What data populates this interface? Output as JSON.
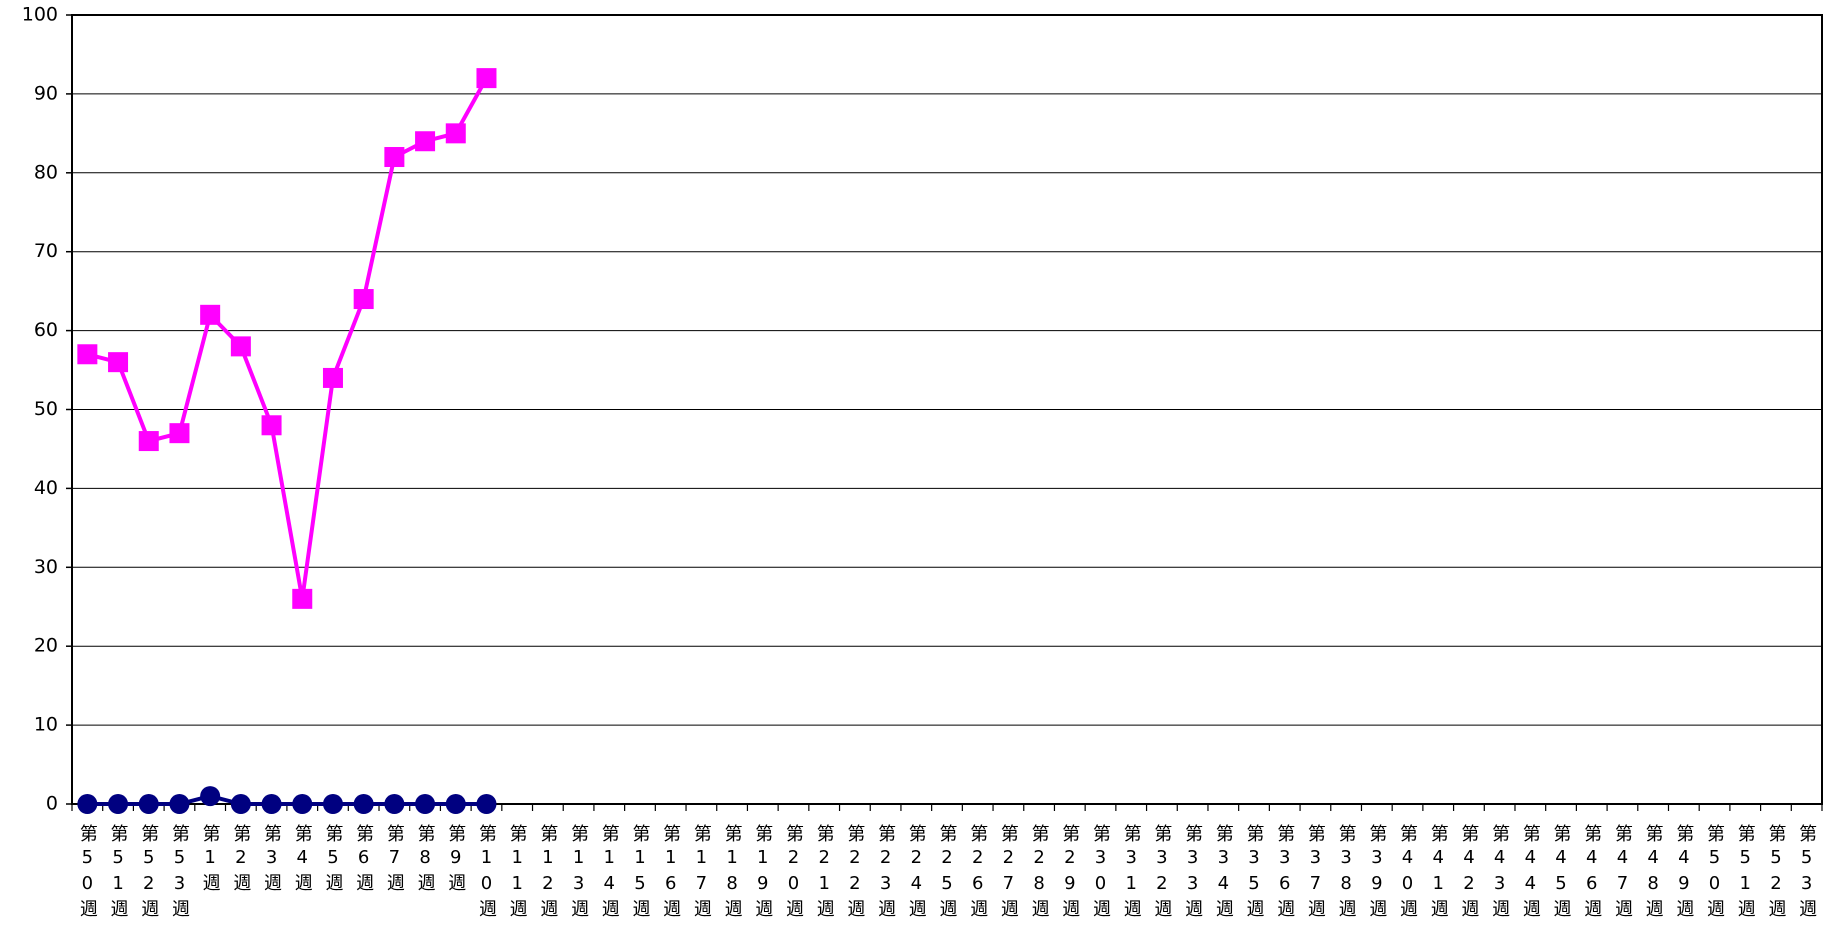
{
  "chart_data": {
    "type": "line",
    "categories": [
      "第50週",
      "第51週",
      "第52週",
      "第53週",
      "第1週",
      "第2週",
      "第3週",
      "第4週",
      "第5週",
      "第6週",
      "第7週",
      "第8週",
      "第9週",
      "第10週",
      "第11週",
      "第12週",
      "第13週",
      "第14週",
      "第15週",
      "第16週",
      "第17週",
      "第18週",
      "第19週",
      "第20週",
      "第21週",
      "第22週",
      "第23週",
      "第24週",
      "第25週",
      "第26週",
      "第27週",
      "第28週",
      "第29週",
      "第30週",
      "第31週",
      "第32週",
      "第33週",
      "第34週",
      "第35週",
      "第36週",
      "第37週",
      "第38週",
      "第39週",
      "第40週",
      "第41週",
      "第42週",
      "第43週",
      "第44週",
      "第45週",
      "第46週",
      "第47週",
      "第48週",
      "第49週",
      "第50週",
      "第51週",
      "第52週",
      "第53週"
    ],
    "series": [
      {
        "color": "#ff00ff",
        "marker": "square",
        "values": [
          57,
          56,
          46,
          47,
          62,
          58,
          48,
          26,
          54,
          64,
          82,
          84,
          85,
          92,
          null,
          null,
          null,
          null,
          null,
          null,
          null,
          null,
          null,
          null,
          null,
          null,
          null,
          null,
          null,
          null,
          null,
          null,
          null,
          null,
          null,
          null,
          null,
          null,
          null,
          null,
          null,
          null,
          null,
          null,
          null,
          null,
          null,
          null,
          null,
          null,
          null,
          null,
          null,
          null,
          null,
          null,
          null
        ]
      },
      {
        "color": "#000080",
        "marker": "circle",
        "values": [
          0,
          0,
          0,
          0,
          1,
          0,
          0,
          0,
          0,
          0,
          0,
          0,
          0,
          0,
          null,
          null,
          null,
          null,
          null,
          null,
          null,
          null,
          null,
          null,
          null,
          null,
          null,
          null,
          null,
          null,
          null,
          null,
          null,
          null,
          null,
          null,
          null,
          null,
          null,
          null,
          null,
          null,
          null,
          null,
          null,
          null,
          null,
          null,
          null,
          null,
          null,
          null,
          null,
          null,
          null,
          null,
          null
        ]
      }
    ],
    "ylim": [
      0,
      100
    ],
    "yticks": [
      0,
      10,
      20,
      30,
      40,
      50,
      60,
      70,
      80,
      90,
      100
    ],
    "grid": true
  }
}
